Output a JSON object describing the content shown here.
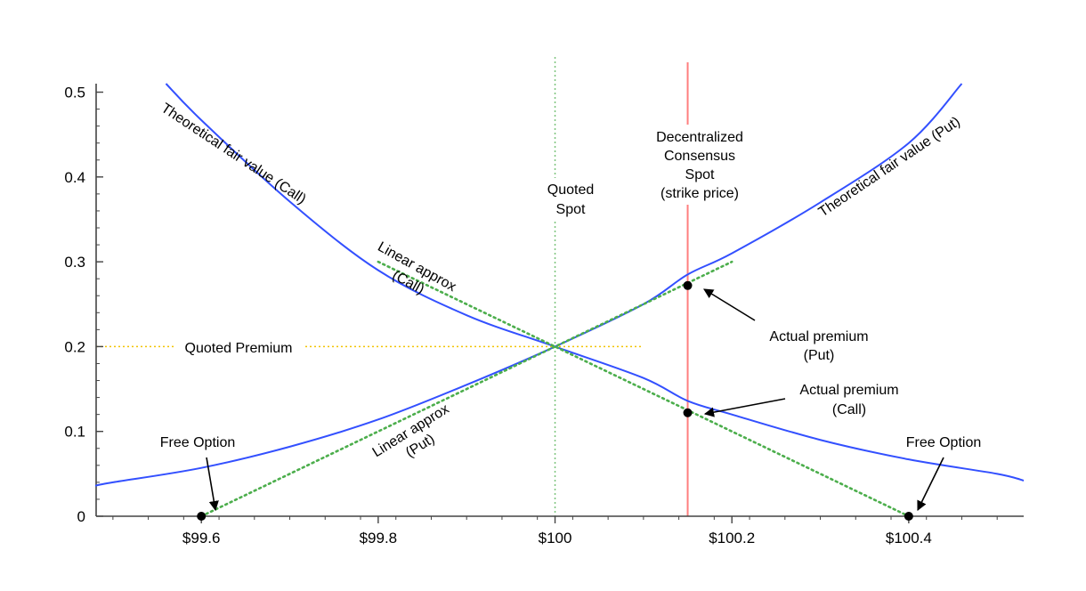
{
  "chart_data": {
    "type": "line",
    "title": "",
    "xlabel": "",
    "ylabel": "",
    "xlim": [
      99.48,
      100.53
    ],
    "ylim": [
      0,
      0.51
    ],
    "grid": false,
    "x_ticks": [
      99.6,
      99.8,
      100,
      100.2,
      100.4
    ],
    "x_tick_labels": [
      "$99.6",
      "$99.8",
      "$100",
      "$100.2",
      "$100.4"
    ],
    "y_ticks": [
      0,
      0.1,
      0.2,
      0.3,
      0.4,
      0.5
    ],
    "y_tick_labels": [
      "0",
      "0.1",
      "0.2",
      "0.3",
      "0.4",
      "0.5"
    ],
    "colors": {
      "curve": "#3350ff",
      "linear": "#4cae4c",
      "spot": "#7cc47c",
      "premium": "#f2c400",
      "strike": "#ff7f7f",
      "point": "#000000"
    },
    "series": [
      {
        "kind": "call_curve",
        "x": [
          99.56,
          99.6,
          99.7,
          99.8,
          99.9,
          100.0,
          100.1,
          100.15,
          100.2,
          100.3,
          100.4,
          100.5,
          100.53
        ],
        "values": [
          0.51,
          0.467,
          0.371,
          0.29,
          0.237,
          0.2,
          0.163,
          0.136,
          0.12,
          0.09,
          0.067,
          0.05,
          0.042
        ]
      },
      {
        "kind": "put_curve",
        "x": [
          99.48,
          99.5,
          99.6,
          99.7,
          99.8,
          99.9,
          100.0,
          100.1,
          100.15,
          100.2,
          100.3,
          100.4,
          100.46
        ],
        "values": [
          0.036,
          0.04,
          0.057,
          0.082,
          0.114,
          0.155,
          0.2,
          0.25,
          0.285,
          0.31,
          0.37,
          0.44,
          0.51
        ]
      },
      {
        "kind": "linear_call",
        "x": [
          99.8,
          100.4
        ],
        "values": [
          0.3,
          0.0
        ]
      },
      {
        "kind": "linear_put",
        "x": [
          99.6,
          100.2
        ],
        "values": [
          0.0,
          0.3
        ]
      }
    ],
    "quoted_spot_x": 100.0,
    "quoted_premium_y": 0.2,
    "quoted_premium_x_end": 100.1,
    "strike_x": 100.15,
    "points": [
      {
        "name": "free-option-left",
        "x": 99.6,
        "y": 0.0
      },
      {
        "name": "free-option-right",
        "x": 100.4,
        "y": 0.0
      },
      {
        "name": "actual-premium-put",
        "x": 100.15,
        "y": 0.272
      },
      {
        "name": "actual-premium-call",
        "x": 100.15,
        "y": 0.122
      }
    ],
    "annotations": {
      "call_curve_label": "Theoretical fair value (Call)",
      "put_curve_label": "Theoretical fair value (Put)",
      "linear_call_label": [
        "Linear approx",
        "(Call)"
      ],
      "linear_put_label": [
        "Linear approx",
        "(Put)"
      ],
      "quoted_spot_label": [
        "Quoted",
        "Spot"
      ],
      "strike_label": [
        "Decentralized",
        "Consensus",
        "Spot",
        "(strike price)"
      ],
      "quoted_premium_label": "Quoted Premium",
      "actual_put_label": [
        "Actual premium",
        "(Put)"
      ],
      "actual_call_label": [
        "Actual premium",
        "(Call)"
      ],
      "free_option_left_label": "Free Option",
      "free_option_right_label": "Free Option"
    }
  }
}
